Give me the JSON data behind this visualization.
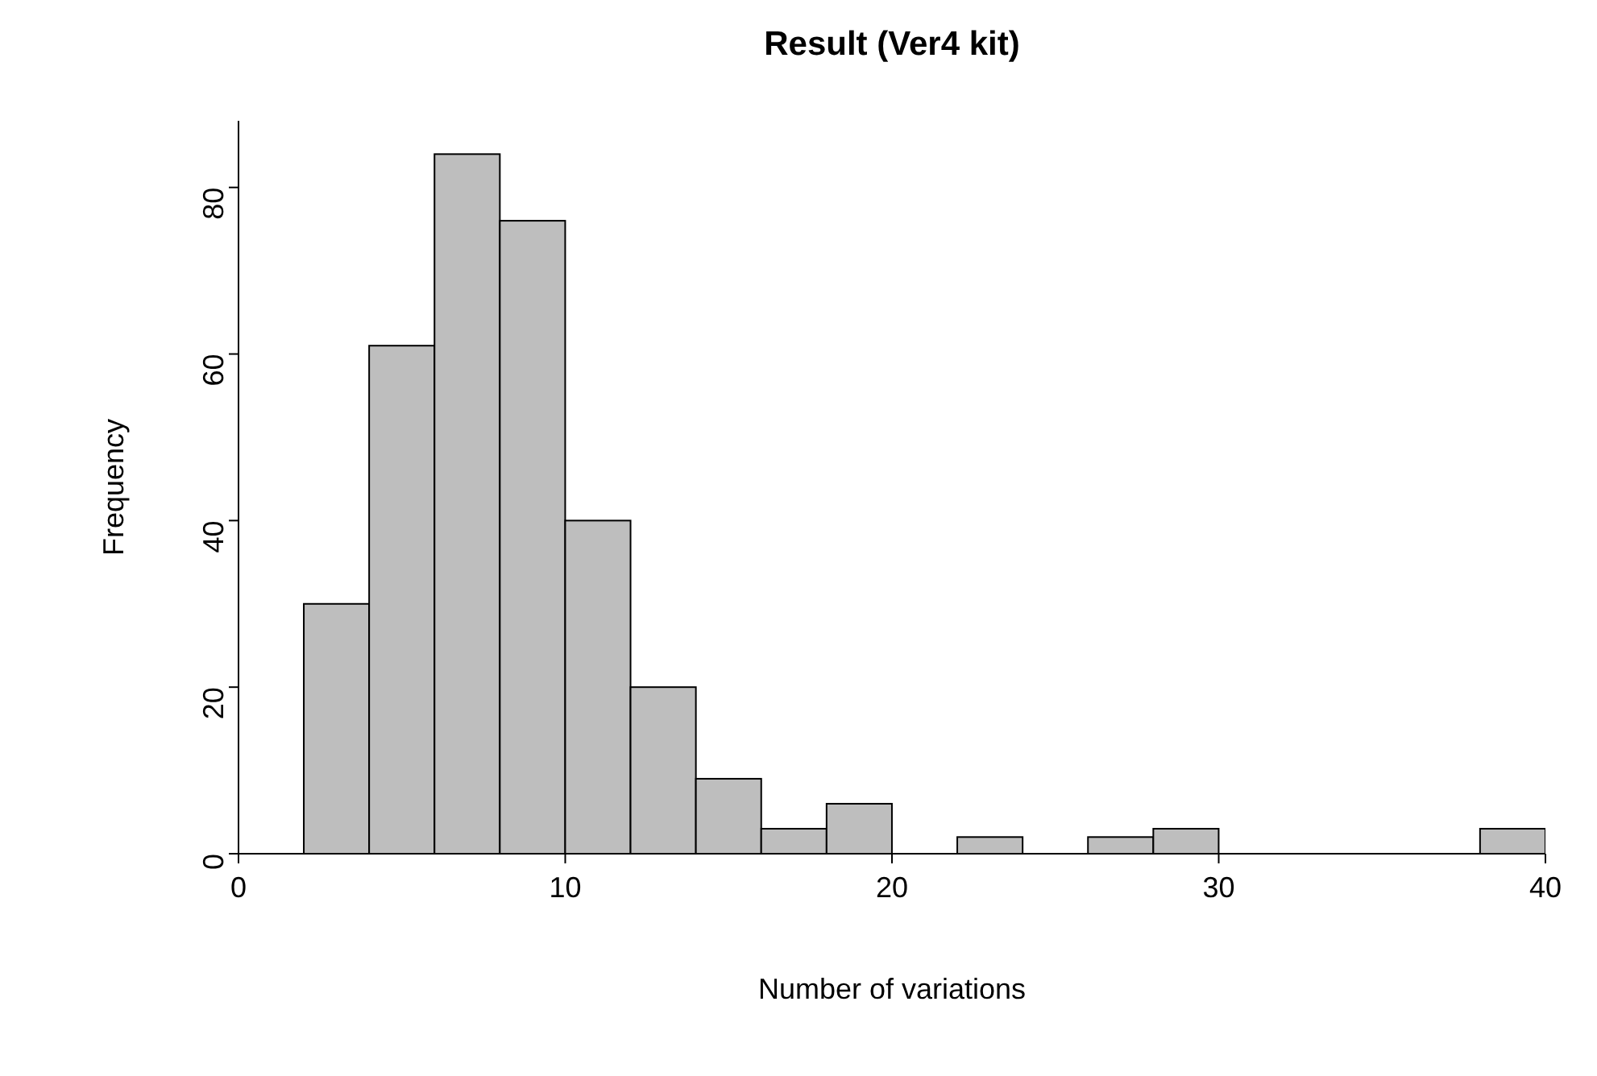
{
  "chart_data": {
    "type": "histogram",
    "title": "Result (Ver4 kit)",
    "xlabel": "Number of variations",
    "ylabel": "Frequency",
    "bins": [
      2,
      4,
      6,
      8,
      10,
      12,
      14,
      16,
      18,
      20,
      22,
      24,
      26,
      28,
      30,
      32,
      34,
      36,
      38,
      40
    ],
    "values": [
      30,
      61,
      84,
      76,
      40,
      20,
      9,
      3,
      6,
      0,
      2,
      0,
      2,
      3,
      0,
      0,
      0,
      0,
      3
    ],
    "color": "#bebebe",
    "xlim": [
      0,
      40
    ],
    "xticks": [
      0,
      10,
      20,
      30,
      40
    ],
    "ylim": [
      0,
      88
    ],
    "yticks": [
      0,
      20,
      40,
      60,
      80
    ]
  }
}
